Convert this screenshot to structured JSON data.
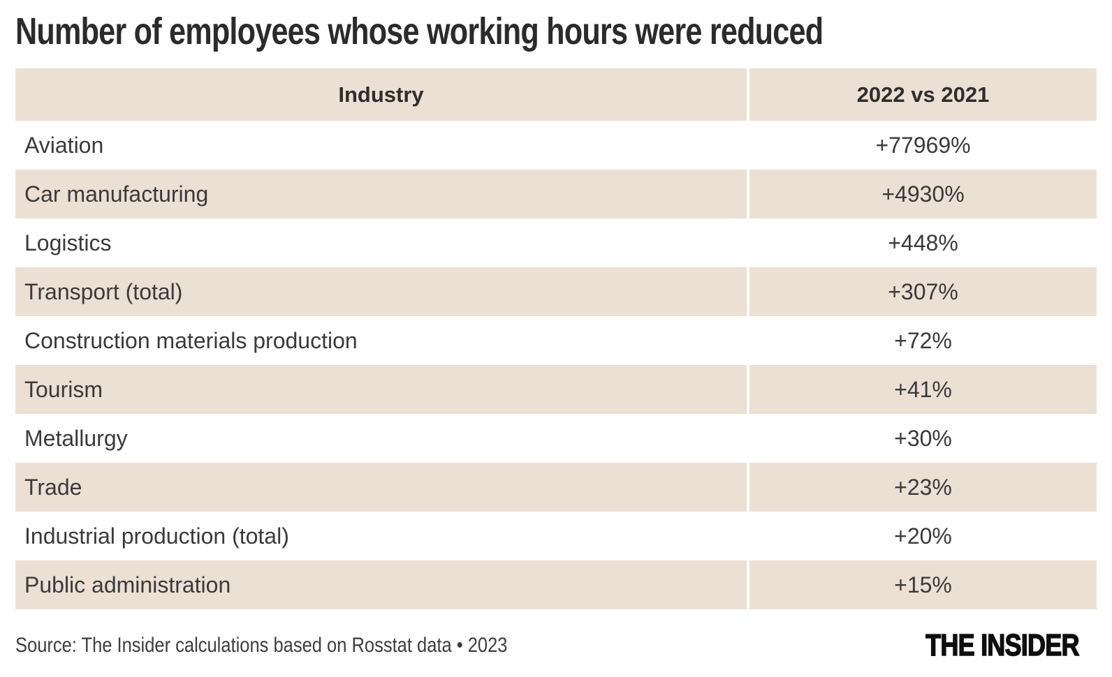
{
  "title": "Number of employees whose working hours were reduced",
  "table": {
    "columns": [
      {
        "label": "Industry"
      },
      {
        "label": "2022 vs 2021"
      }
    ],
    "rows": [
      {
        "industry": "Aviation",
        "value": "+77969%"
      },
      {
        "industry": "Car manufacturing",
        "value": "+4930%"
      },
      {
        "industry": "Logistics",
        "value": "+448%"
      },
      {
        "industry": "Transport (total)",
        "value": "+307%"
      },
      {
        "industry": "Construction materials production",
        "value": "+72%"
      },
      {
        "industry": "Tourism",
        "value": "+41%"
      },
      {
        "industry": "Metallurgy",
        "value": "+30%"
      },
      {
        "industry": "Trade",
        "value": "+23%"
      },
      {
        "industry": "Industrial production (total)",
        "value": "+20%"
      },
      {
        "industry": "Public administration",
        "value": "+15%"
      }
    ]
  },
  "footer": {
    "source": "Source: The Insider calculations based on Rosstat data • 2023",
    "logo": "THE INSIDER"
  },
  "colors": {
    "row_stripe": "#ecdfd4",
    "text": "#3a3a3a",
    "title_text": "#2b2b2b",
    "background": "#ffffff"
  },
  "chart_data": {
    "type": "table",
    "title": "Number of employees whose working hours were reduced",
    "columns": [
      "Industry",
      "2022 vs 2021"
    ],
    "rows": [
      [
        "Aviation",
        "+77969%"
      ],
      [
        "Car manufacturing",
        "+4930%"
      ],
      [
        "Logistics",
        "+448%"
      ],
      [
        "Transport (total)",
        "+307%"
      ],
      [
        "Construction materials production",
        "+72%"
      ],
      [
        "Tourism",
        "+41%"
      ],
      [
        "Metallurgy",
        "+30%"
      ],
      [
        "Trade",
        "+23%"
      ],
      [
        "Industrial production (total)",
        "+20%"
      ],
      [
        "Public administration",
        "+15%"
      ]
    ],
    "values_numeric_percent": [
      77969,
      4930,
      448,
      307,
      72,
      41,
      30,
      23,
      20,
      15
    ],
    "source": "Source: The Insider calculations based on Rosstat data • 2023",
    "layout_hints": {
      "striped_rows": true,
      "stripe_color": "#ecdfd4",
      "header_background": "#ecdfd4",
      "value_column_alignment": "center",
      "industry_column_alignment": "left"
    }
  }
}
